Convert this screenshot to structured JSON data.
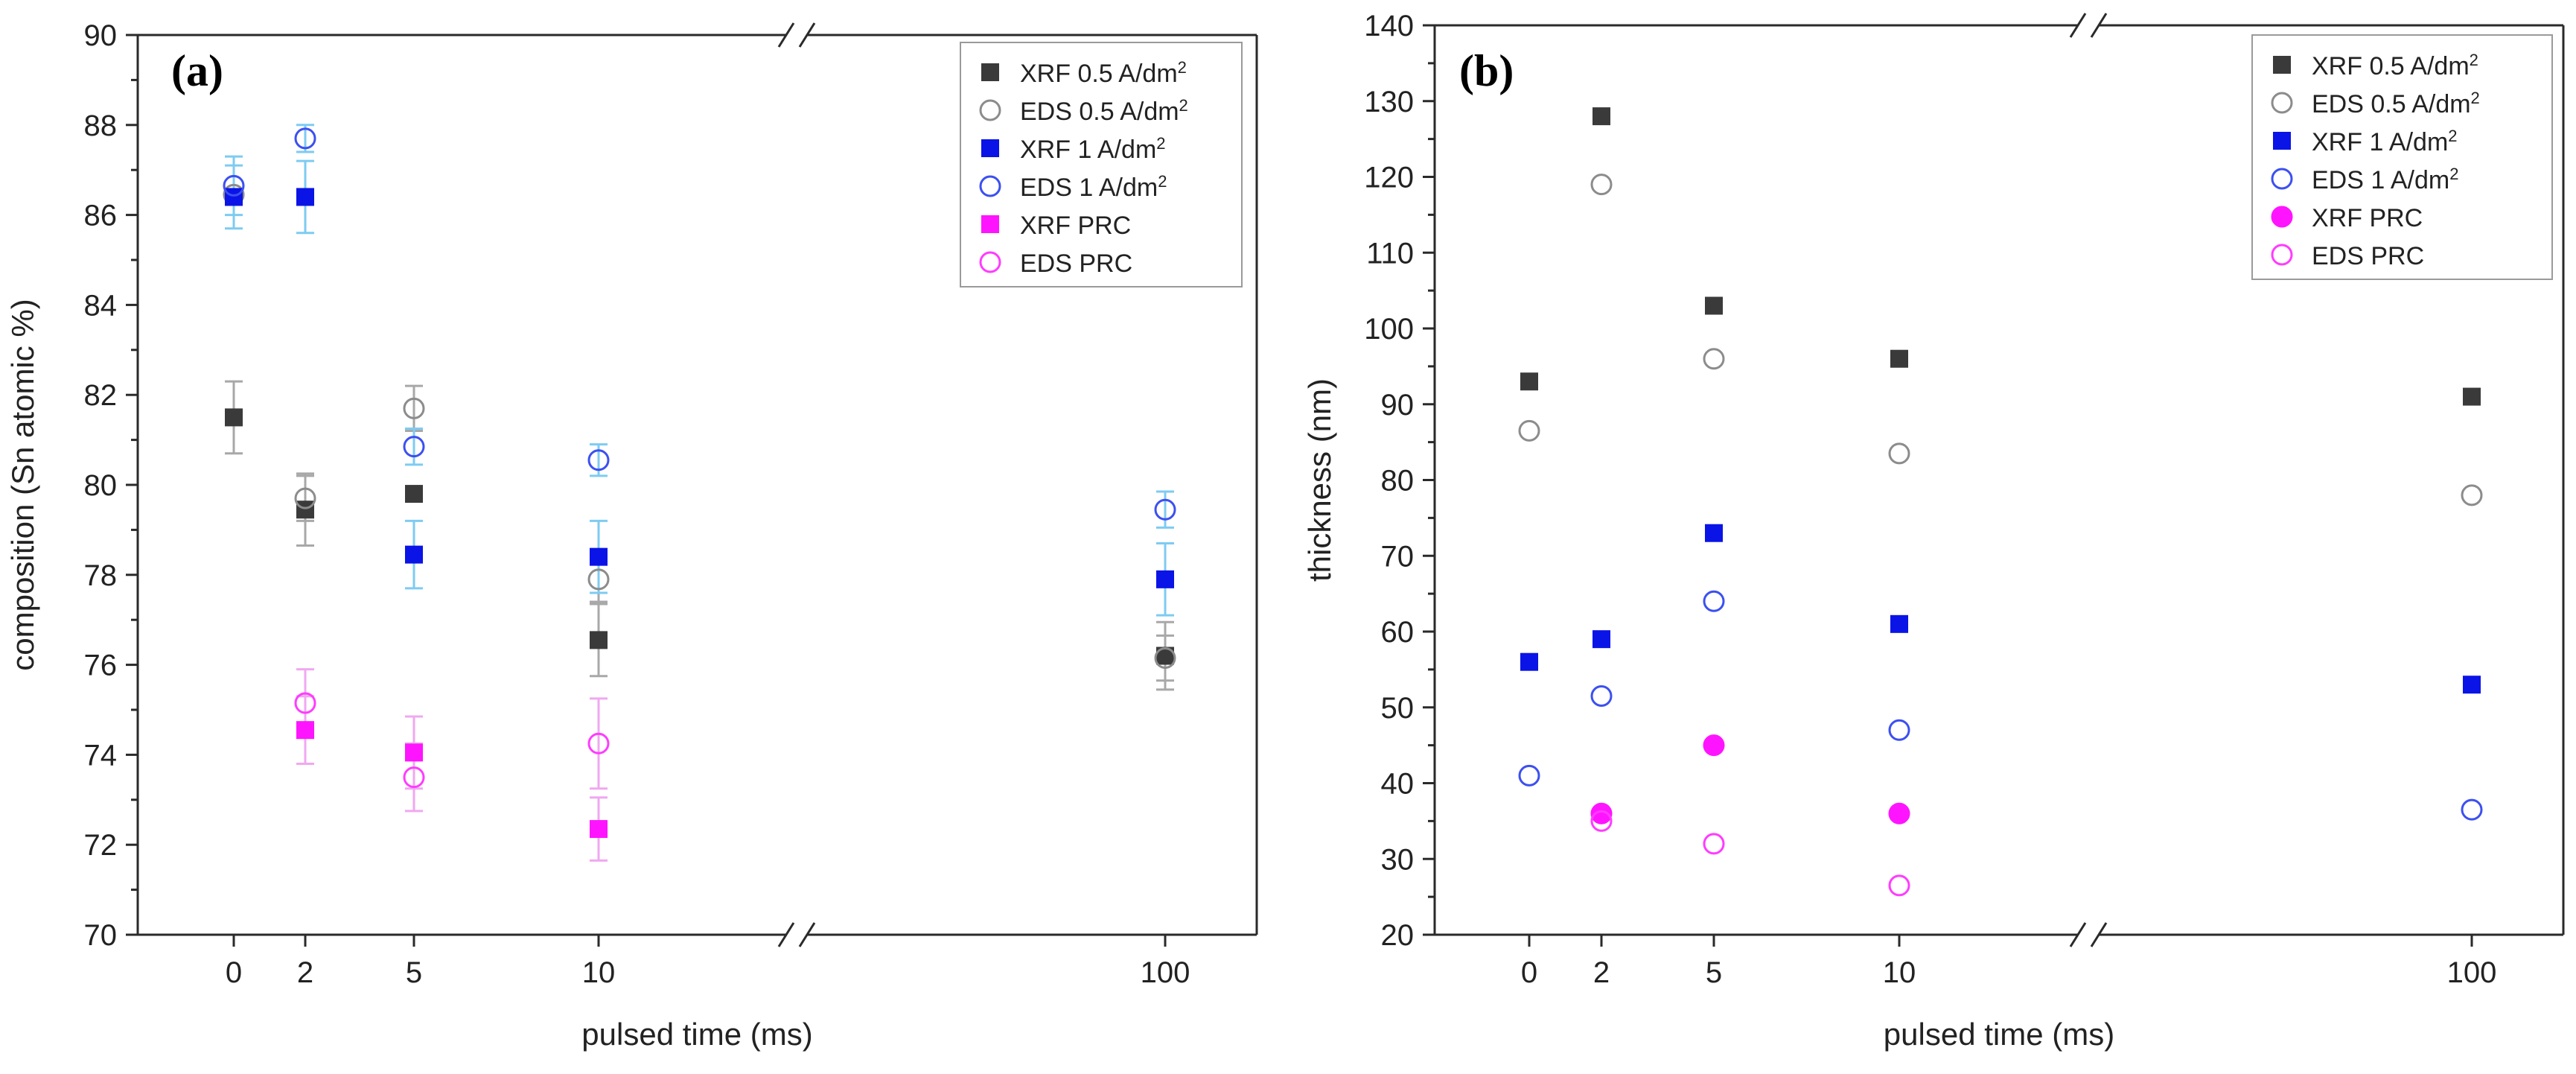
{
  "colors": {
    "xrf05": "#3a3a3a",
    "eds05": "#8c8c8c",
    "xrf1": "#0a14e6",
    "eds1": "#3c50f0",
    "xrf_prc": "#ff14ff",
    "eds_prc": "#ff3cff",
    "err_dark": "#a8a8a8",
    "err_blue": "#7ecbf2",
    "err_prc": "#f0a8f0",
    "axis": "#2a2a2a"
  },
  "chart_data": [
    {
      "type": "scatter",
      "panel_label": "(a)",
      "xlabel": "pulsed time (ms)",
      "ylabel": "composition (Sn atomic %)",
      "ylim": [
        70,
        90
      ],
      "yticks": [
        70,
        72,
        74,
        76,
        78,
        80,
        82,
        84,
        86,
        88,
        90
      ],
      "y_minor_step": 1,
      "xticks": [
        {
          "value": 0,
          "label": "0"
        },
        {
          "value": 2,
          "label": "2"
        },
        {
          "value": 5,
          "label": "5"
        },
        {
          "value": 10,
          "label": "10"
        },
        {
          "value": 100,
          "label": "100"
        }
      ],
      "x_axis_break": true,
      "legend_position": "top-right",
      "series": [
        {
          "name": "XRF 0.5 A/dm",
          "sup": "2",
          "marker": "square",
          "filled": true,
          "color_key": "xrf05",
          "err_key": "err_dark",
          "points": [
            {
              "x": 0,
              "y": 81.5,
              "err": 0.8
            },
            {
              "x": 2,
              "y": 79.45,
              "err": 0.8
            },
            {
              "x": 5,
              "y": 79.8,
              "err": 0
            },
            {
              "x": 10,
              "y": 76.55,
              "err": 0.8
            },
            {
              "x": 100,
              "y": 76.2,
              "err": 0.75
            }
          ]
        },
        {
          "name": "EDS 0.5 A/dm",
          "sup": "2",
          "marker": "circle",
          "filled": false,
          "color_key": "eds05",
          "err_key": "err_dark",
          "points": [
            {
              "x": 0,
              "y": 86.45,
              "err": 0
            },
            {
              "x": 2,
              "y": 79.7,
              "err": 0.5
            },
            {
              "x": 5,
              "y": 81.7,
              "err": 0.5
            },
            {
              "x": 10,
              "y": 77.9,
              "err": 0.5
            },
            {
              "x": 100,
              "y": 76.15,
              "err": 0.5
            }
          ]
        },
        {
          "name": "XRF 1 A/dm",
          "sup": "2",
          "marker": "square",
          "filled": true,
          "color_key": "xrf1",
          "err_key": "err_blue",
          "points": [
            {
              "x": 0,
              "y": 86.4,
              "err": 0.7
            },
            {
              "x": 2,
              "y": 86.4,
              "err": 0.8
            },
            {
              "x": 5,
              "y": 78.45,
              "err": 0.75
            },
            {
              "x": 10,
              "y": 78.4,
              "err": 0.8
            },
            {
              "x": 100,
              "y": 77.9,
              "err": 0.8
            }
          ]
        },
        {
          "name": "EDS 1 A/dm",
          "sup": "2",
          "marker": "circle",
          "filled": false,
          "color_key": "eds1",
          "err_key": "err_blue",
          "points": [
            {
              "x": 0,
              "y": 86.65,
              "err": 0.65
            },
            {
              "x": 2,
              "y": 87.7,
              "err": 0.3
            },
            {
              "x": 5,
              "y": 80.85,
              "err": 0.4
            },
            {
              "x": 10,
              "y": 80.55,
              "err": 0.35
            },
            {
              "x": 100,
              "y": 79.45,
              "err": 0.4
            }
          ]
        },
        {
          "name": "XRF PRC",
          "sup": "",
          "marker": "square",
          "filled": true,
          "color_key": "xrf_prc",
          "err_key": "err_prc",
          "points": [
            {
              "x": 2,
              "y": 74.55,
              "err": 0.75
            },
            {
              "x": 5,
              "y": 74.05,
              "err": 0.8
            },
            {
              "x": 10,
              "y": 72.35,
              "err": 0.7
            }
          ]
        },
        {
          "name": "EDS PRC",
          "sup": "",
          "marker": "circle",
          "filled": false,
          "color_key": "eds_prc",
          "err_key": "err_prc",
          "points": [
            {
              "x": 2,
              "y": 75.15,
              "err": 0.75
            },
            {
              "x": 5,
              "y": 73.5,
              "err": 0.75
            },
            {
              "x": 10,
              "y": 74.25,
              "err": 1.0
            }
          ]
        }
      ]
    },
    {
      "type": "scatter",
      "panel_label": "(b)",
      "xlabel": "pulsed time (ms)",
      "ylabel": "thickness (nm)",
      "ylim": [
        20,
        140
      ],
      "yticks": [
        20,
        30,
        40,
        50,
        60,
        70,
        80,
        90,
        100,
        110,
        120,
        130,
        140
      ],
      "y_minor_step": 5,
      "xticks": [
        {
          "value": 0,
          "label": "0"
        },
        {
          "value": 2,
          "label": "2"
        },
        {
          "value": 5,
          "label": "5"
        },
        {
          "value": 10,
          "label": "10"
        },
        {
          "value": 100,
          "label": "100"
        }
      ],
      "x_axis_break": true,
      "legend_position": "top-right",
      "series": [
        {
          "name": "XRF 0.5 A/dm",
          "sup": "2",
          "marker": "square",
          "filled": true,
          "color_key": "xrf05",
          "err_key": "err_dark",
          "points": [
            {
              "x": 0,
              "y": 93
            },
            {
              "x": 2,
              "y": 128
            },
            {
              "x": 5,
              "y": 103
            },
            {
              "x": 10,
              "y": 96
            },
            {
              "x": 100,
              "y": 91
            }
          ]
        },
        {
          "name": "EDS 0.5 A/dm",
          "sup": "2",
          "marker": "circle",
          "filled": false,
          "color_key": "eds05",
          "err_key": "err_dark",
          "points": [
            {
              "x": 0,
              "y": 86.5
            },
            {
              "x": 2,
              "y": 119
            },
            {
              "x": 5,
              "y": 96
            },
            {
              "x": 10,
              "y": 83.5
            },
            {
              "x": 100,
              "y": 78
            }
          ]
        },
        {
          "name": "XRF 1 A/dm",
          "sup": "2",
          "marker": "square",
          "filled": true,
          "color_key": "xrf1",
          "err_key": "err_blue",
          "points": [
            {
              "x": 0,
              "y": 56
            },
            {
              "x": 2,
              "y": 59
            },
            {
              "x": 5,
              "y": 73
            },
            {
              "x": 10,
              "y": 61
            },
            {
              "x": 100,
              "y": 53
            }
          ]
        },
        {
          "name": "EDS 1 A/dm",
          "sup": "2",
          "marker": "circle",
          "filled": false,
          "color_key": "eds1",
          "err_key": "err_blue",
          "points": [
            {
              "x": 0,
              "y": 41
            },
            {
              "x": 2,
              "y": 51.5
            },
            {
              "x": 5,
              "y": 64
            },
            {
              "x": 10,
              "y": 47
            },
            {
              "x": 100,
              "y": 36.5
            }
          ]
        },
        {
          "name": "XRF PRC",
          "sup": "",
          "marker": "circle",
          "filled": true,
          "color_key": "xrf_prc",
          "err_key": "err_prc",
          "points": [
            {
              "x": 2,
              "y": 36
            },
            {
              "x": 5,
              "y": 45
            },
            {
              "x": 10,
              "y": 36
            }
          ]
        },
        {
          "name": "EDS PRC",
          "sup": "",
          "marker": "circle",
          "filled": false,
          "color_key": "eds_prc",
          "err_key": "err_prc",
          "points": [
            {
              "x": 2,
              "y": 35
            },
            {
              "x": 5,
              "y": 32
            },
            {
              "x": 10,
              "y": 26.5
            }
          ]
        }
      ]
    }
  ]
}
